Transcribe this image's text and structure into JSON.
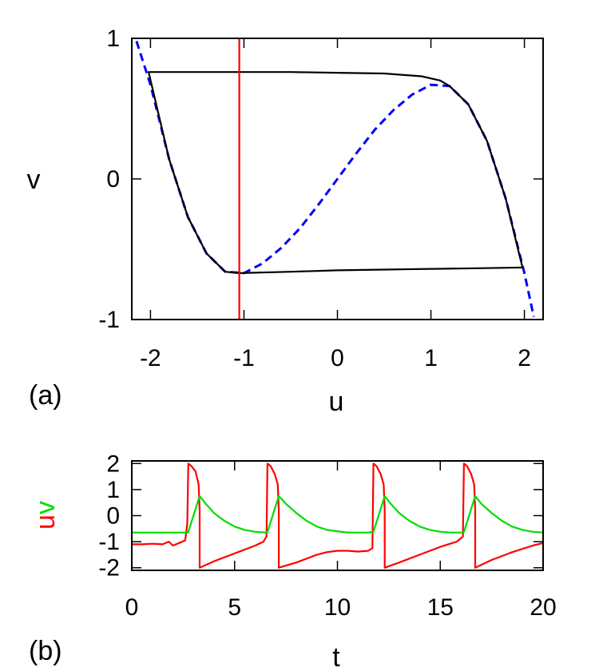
{
  "colors": {
    "axis": "#000000",
    "trajectory": "#000000",
    "nullcline": "#0000ff",
    "threshold": "#ff0000",
    "u_series": "#ff0000",
    "v_series": "#00dd00"
  },
  "chart_data": [
    {
      "type": "line",
      "panel_label": "(a)",
      "xlabel": "u",
      "ylabel": "v",
      "xlim": [
        -2.2,
        2.2
      ],
      "ylim": [
        -1,
        1
      ],
      "xticks": [
        -2,
        -1,
        0,
        1,
        2
      ],
      "xtick_labels": [
        "-2",
        "-1",
        "0",
        "1",
        "2"
      ],
      "yticks": [
        -1,
        0,
        1
      ],
      "ytick_labels": [
        "-1",
        "0",
        "1"
      ],
      "grid": false,
      "series": [
        {
          "style": "dashed",
          "color": "#0000ff",
          "x": [
            -2.15,
            -2.0,
            -1.8,
            -1.6,
            -1.4,
            -1.2,
            -1.0,
            -0.8,
            -0.6,
            -0.4,
            -0.2,
            0.0,
            0.2,
            0.4,
            0.6,
            0.8,
            1.0,
            1.2,
            1.4,
            1.6,
            1.8,
            2.0,
            2.1
          ],
          "y": [
            0.98,
            0.67,
            0.14,
            -0.27,
            -0.53,
            -0.66,
            -0.67,
            -0.6,
            -0.49,
            -0.35,
            -0.18,
            0.0,
            0.18,
            0.35,
            0.49,
            0.6,
            0.67,
            0.66,
            0.53,
            0.27,
            -0.14,
            -0.67,
            -0.98
          ]
        },
        {
          "style": "solid",
          "color": "#000000",
          "x": [
            -1.05,
            -1.2,
            -1.4,
            -1.6,
            -1.8,
            -2.02,
            -1.5,
            -1.0,
            -0.5,
            0.0,
            0.5,
            0.9,
            1.1,
            1.2,
            1.4,
            1.6,
            1.8,
            1.95,
            1.98,
            1.5,
            1.0,
            0.5,
            0.0,
            -0.5,
            -1.05
          ],
          "y": [
            -0.67,
            -0.66,
            -0.53,
            -0.27,
            0.14,
            0.76,
            0.76,
            0.76,
            0.76,
            0.755,
            0.75,
            0.73,
            0.7,
            0.66,
            0.53,
            0.27,
            -0.14,
            -0.55,
            -0.63,
            -0.635,
            -0.64,
            -0.645,
            -0.65,
            -0.66,
            -0.67
          ]
        },
        {
          "style": "solid",
          "color": "#ff0000",
          "x": [
            -1.05,
            -1.05
          ],
          "y": [
            -1.0,
            1.0
          ]
        }
      ]
    },
    {
      "type": "line",
      "panel_label": "(b)",
      "xlabel": "t",
      "ylabel": "uv",
      "xlim": [
        0,
        20
      ],
      "ylim": [
        -2.1,
        2.1
      ],
      "xticks": [
        0,
        5,
        10,
        15,
        20
      ],
      "xtick_labels": [
        "0",
        "5",
        "10",
        "15",
        "20"
      ],
      "yticks": [
        2,
        1,
        0,
        -1,
        -2
      ],
      "ytick_labels": [
        "2",
        "1",
        "0",
        "-1",
        "-2"
      ],
      "grid": false,
      "series": [
        {
          "name": "u",
          "color": "#ff0000",
          "x": [
            0,
            0.5,
            1.0,
            1.5,
            1.8,
            2.0,
            2.3,
            2.6,
            2.7,
            2.75,
            2.9,
            3.1,
            3.25,
            3.3,
            3.3,
            4.0,
            5.0,
            6.0,
            6.4,
            6.55,
            6.6,
            6.75,
            6.95,
            7.1,
            7.15,
            7.15,
            8.0,
            9.0,
            9.5,
            10.0,
            10.5,
            11.0,
            11.5,
            11.7,
            11.75,
            11.9,
            12.1,
            12.25,
            12.3,
            12.3,
            13.0,
            14.0,
            15.0,
            15.8,
            16.1,
            16.15,
            16.3,
            16.5,
            16.65,
            16.7,
            16.7,
            17.5,
            18.5,
            19.5,
            20.0
          ],
          "y": [
            -1.1,
            -1.1,
            -1.08,
            -1.1,
            -1.0,
            -1.15,
            -1.05,
            -0.95,
            -0.3,
            2.0,
            1.9,
            1.7,
            1.2,
            0.2,
            -2.0,
            -1.75,
            -1.45,
            -1.15,
            -1.0,
            -0.8,
            2.0,
            1.9,
            1.6,
            1.2,
            0.2,
            -2.0,
            -1.8,
            -1.5,
            -1.4,
            -1.35,
            -1.35,
            -1.38,
            -1.35,
            -1.25,
            2.0,
            1.9,
            1.6,
            1.2,
            0.2,
            -2.0,
            -1.8,
            -1.5,
            -1.2,
            -1.0,
            -0.8,
            2.0,
            1.9,
            1.6,
            1.2,
            0.2,
            -2.0,
            -1.7,
            -1.4,
            -1.15,
            -1.05
          ]
        },
        {
          "name": "v",
          "color": "#00dd00",
          "x": [
            0,
            0.5,
            1.0,
            1.5,
            2.0,
            2.5,
            2.7,
            2.75,
            3.3,
            3.6,
            4.0,
            4.5,
            5.0,
            5.5,
            6.0,
            6.5,
            6.6,
            7.15,
            7.5,
            8.0,
            8.5,
            9.0,
            9.5,
            10.0,
            10.5,
            11.0,
            11.5,
            11.75,
            12.3,
            12.6,
            13.0,
            13.5,
            14.0,
            14.5,
            15.0,
            15.5,
            16.0,
            16.15,
            16.7,
            17.0,
            17.5,
            18.0,
            18.5,
            19.0,
            19.5,
            20.0
          ],
          "y": [
            -0.65,
            -0.65,
            -0.65,
            -0.65,
            -0.65,
            -0.65,
            -0.65,
            -0.62,
            0.75,
            0.45,
            0.1,
            -0.2,
            -0.42,
            -0.55,
            -0.62,
            -0.65,
            -0.63,
            0.75,
            0.45,
            0.1,
            -0.2,
            -0.42,
            -0.55,
            -0.6,
            -0.65,
            -0.65,
            -0.65,
            -0.62,
            0.75,
            0.45,
            0.1,
            -0.2,
            -0.42,
            -0.55,
            -0.62,
            -0.65,
            -0.65,
            -0.63,
            0.75,
            0.45,
            0.1,
            -0.2,
            -0.42,
            -0.55,
            -0.62,
            -0.65
          ]
        }
      ]
    }
  ]
}
